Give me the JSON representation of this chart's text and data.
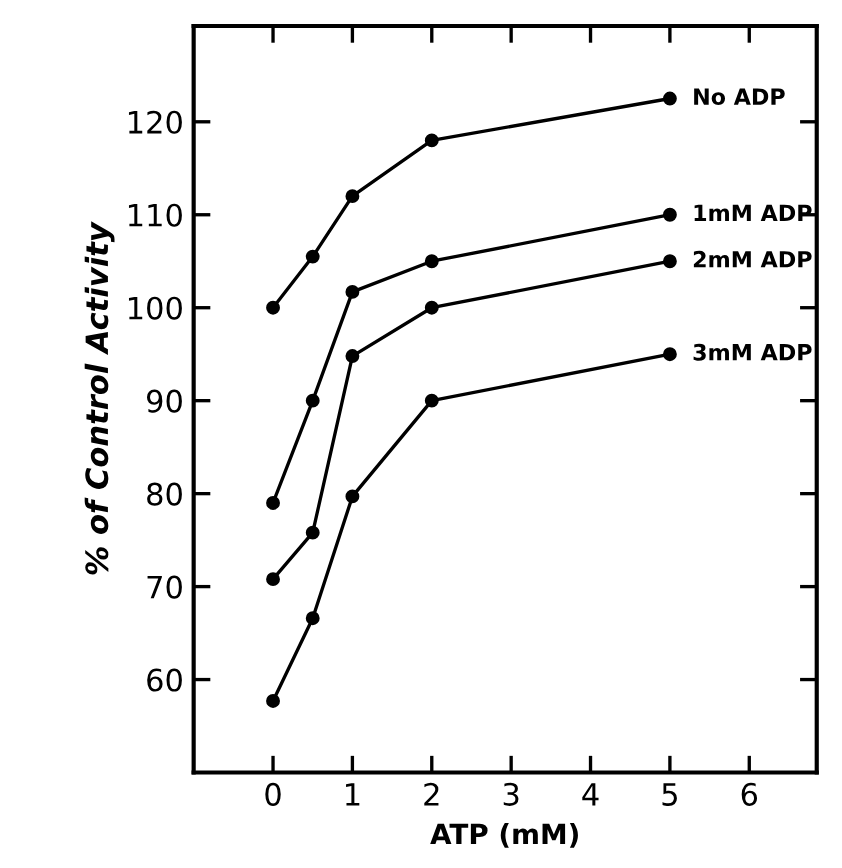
{
  "chart_data": {
    "type": "line",
    "xlabel": "ATP (mM)",
    "ylabel": "% of Control Activity",
    "x": [
      0,
      0.5,
      1,
      2,
      5
    ],
    "series": [
      {
        "name": "No ADP",
        "color": "#000000",
        "values": [
          100,
          105.5,
          112,
          118,
          122.5
        ]
      },
      {
        "name": "1mM ADP",
        "color": "#000000",
        "values": [
          79,
          90,
          101.7,
          105,
          110
        ]
      },
      {
        "name": "2mM ADP",
        "color": "#000000",
        "values": [
          70.8,
          75.8,
          94.8,
          100,
          105
        ]
      },
      {
        "name": "3mM ADP",
        "color": "#000000",
        "values": [
          57.7,
          66.6,
          79.7,
          90,
          95
        ]
      }
    ],
    "xlim": [
      -1,
      6.85
    ],
    "xticks": [
      0,
      1,
      2,
      3,
      4,
      5,
      6
    ],
    "ylim": [
      50,
      130.3
    ],
    "yticks": [
      60,
      70,
      80,
      90,
      100,
      110,
      120
    ],
    "marker": "circle",
    "line_style": "solid",
    "grid": false,
    "legend": false
  }
}
